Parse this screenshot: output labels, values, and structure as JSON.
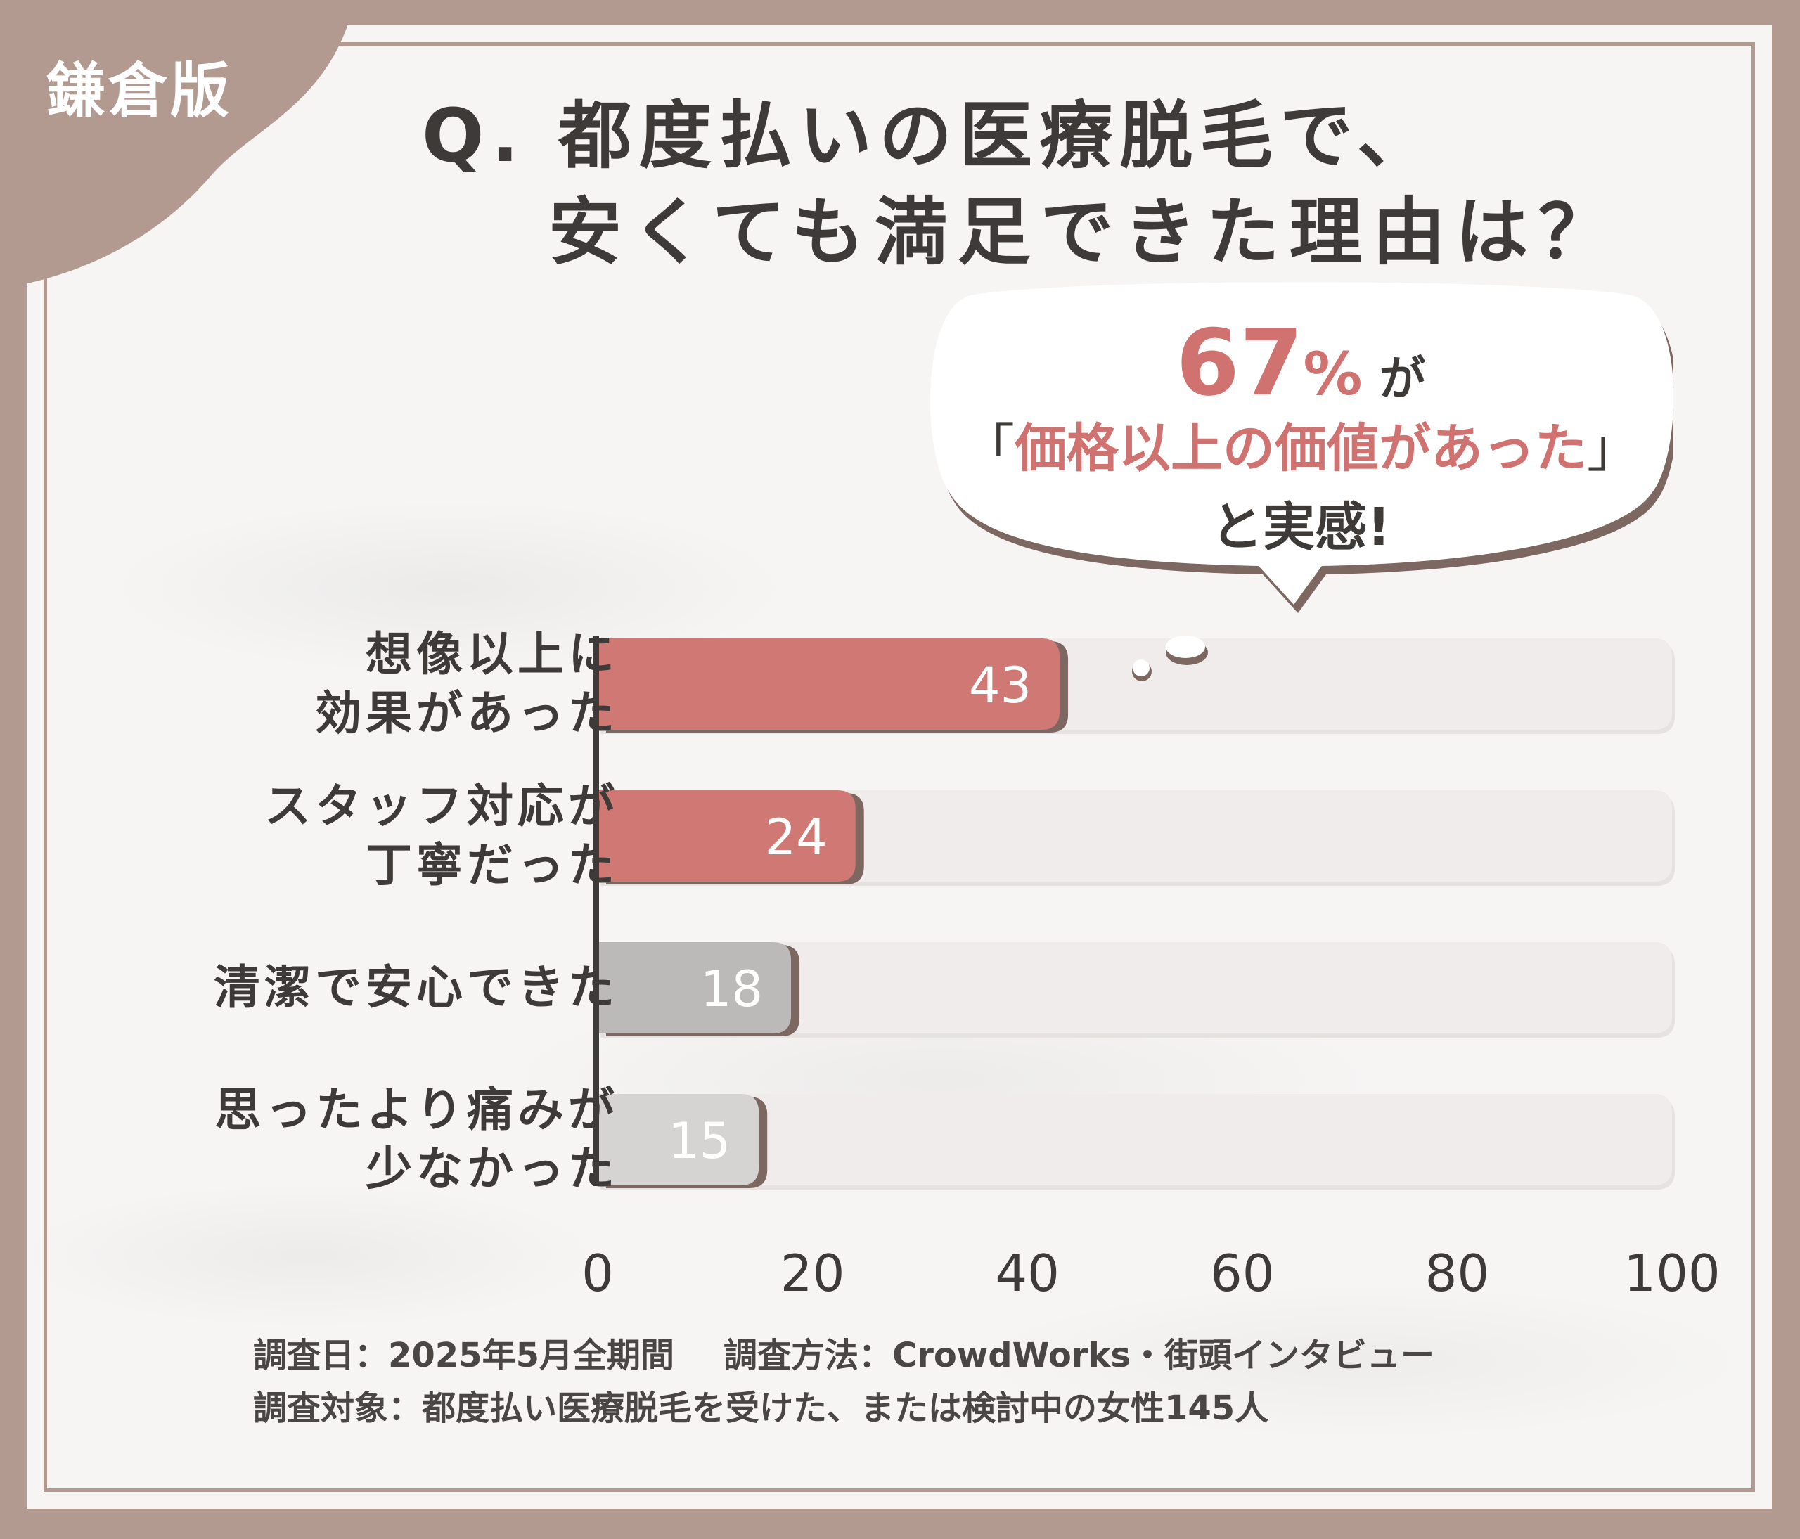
{
  "badge": "鎌倉版",
  "title": {
    "line1": "Q. 都度払いの医療脱毛で、",
    "line2": "安くても満足できた理由は？"
  },
  "callout": {
    "percent": "67",
    "percent_sign": "%",
    "suffix": "が",
    "open_bracket": "「",
    "quote": "価格以上の価値があった",
    "close_bracket": "」",
    "tail": "と実感!"
  },
  "chart_data": {
    "type": "bar",
    "orientation": "horizontal",
    "categories": [
      [
        "想像以上に",
        "効果があった"
      ],
      [
        "スタッフ対応が",
        "丁寧だった"
      ],
      [
        "清潔で安心できた"
      ],
      [
        "思ったより痛みが",
        "少なかった"
      ]
    ],
    "values": [
      43,
      24,
      18,
      15
    ],
    "value_labels": [
      "43",
      "24",
      "18",
      "15"
    ],
    "xlim": [
      0,
      100
    ],
    "xticks": [
      "0",
      "20",
      "40",
      "60",
      "80",
      "100"
    ],
    "colors": [
      "#cf7874",
      "#cf7874",
      "#bcbab8",
      "#d6d4d2"
    ],
    "track_color": "#efeceb",
    "shadow_color": "#7d6761"
  },
  "footer": {
    "date": "調査日：2025年5月全期間",
    "method": "調査方法：CrowdWorks・街頭インタビュー",
    "target": "調査対象：都度払い医療脱毛を受けた、または検討中の女性145人"
  },
  "colors": {
    "frame": "#b39a91",
    "accent": "#cf7270",
    "text": "#3d3a38"
  }
}
